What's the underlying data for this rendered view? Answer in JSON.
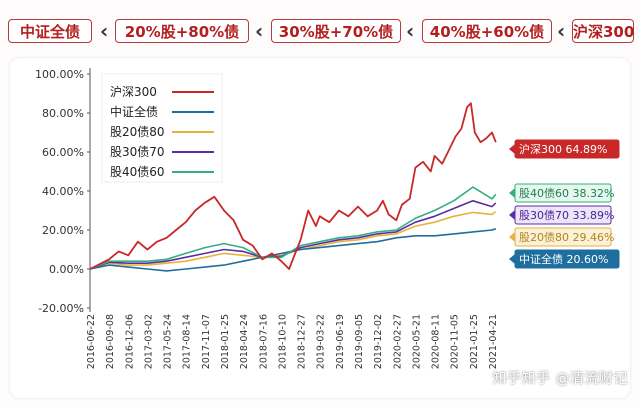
{
  "tabs": [
    {
      "label": "中证全债"
    },
    {
      "label": "20%股+80%债"
    },
    {
      "label": "30%股+70%债"
    },
    {
      "label": "40%股+60%债"
    },
    {
      "label": "沪深300"
    }
  ],
  "watermark": "知乎知乎 @清流财记",
  "colors": {
    "hs300": "#c92828",
    "bond": "#1f6f9e",
    "s20": "#e7b33f",
    "s30": "#5b2da6",
    "s40": "#33b07e"
  },
  "chart_data": {
    "type": "line",
    "title": "",
    "xlabel": "",
    "ylabel": "",
    "ylim": [
      -0.2,
      1.0
    ],
    "yticks": [
      "100.00%",
      "80.00%",
      "60.00%",
      "40.00%",
      "20.00%",
      "0.00%",
      "-20.00%"
    ],
    "xticks": [
      "2016-06-22",
      "2016-09-08",
      "2016-12-06",
      "2017-03-02",
      "2017-05-24",
      "2017-08-14",
      "2017-11-07",
      "2018-01-25",
      "2018-04-24",
      "2018-07-16",
      "2018-10-10",
      "2018-12-27",
      "2019-03-22",
      "2019-06-19",
      "2019-09-05",
      "2019-12-02",
      "2020-02-27",
      "2020-05-21",
      "2020-08-11",
      "2020-11-05",
      "2021-01-25",
      "2021-04-21"
    ],
    "grid": false,
    "legend_position": "top-left",
    "series": [
      {
        "name": "沪深300",
        "key": "hs300",
        "end_label": "沪深300 64.89%",
        "values": [
          [
            0,
            0
          ],
          [
            1,
            0.05
          ],
          [
            1.5,
            0.09
          ],
          [
            2,
            0.07
          ],
          [
            2.5,
            0.14
          ],
          [
            3,
            0.1
          ],
          [
            3.5,
            0.14
          ],
          [
            4,
            0.16
          ],
          [
            4.5,
            0.2
          ],
          [
            5,
            0.24
          ],
          [
            5.5,
            0.3
          ],
          [
            6,
            0.34
          ],
          [
            6.5,
            0.37
          ],
          [
            7,
            0.3
          ],
          [
            7.5,
            0.25
          ],
          [
            8,
            0.15
          ],
          [
            8.5,
            0.12
          ],
          [
            9,
            0.05
          ],
          [
            9.5,
            0.08
          ],
          [
            10,
            0.04
          ],
          [
            10.4,
            0.0
          ],
          [
            10.8,
            0.1
          ],
          [
            11,
            0.15
          ],
          [
            11.4,
            0.3
          ],
          [
            11.8,
            0.22
          ],
          [
            12,
            0.27
          ],
          [
            12.5,
            0.24
          ],
          [
            13,
            0.3
          ],
          [
            13.5,
            0.27
          ],
          [
            14,
            0.32
          ],
          [
            14.5,
            0.27
          ],
          [
            15,
            0.3
          ],
          [
            15.3,
            0.35
          ],
          [
            15.6,
            0.28
          ],
          [
            16,
            0.25
          ],
          [
            16.3,
            0.33
          ],
          [
            16.7,
            0.36
          ],
          [
            17,
            0.52
          ],
          [
            17.4,
            0.55
          ],
          [
            17.8,
            0.5
          ],
          [
            18,
            0.58
          ],
          [
            18.4,
            0.54
          ],
          [
            18.7,
            0.6
          ],
          [
            19.1,
            0.68
          ],
          [
            19.4,
            0.72
          ],
          [
            19.7,
            0.83
          ],
          [
            19.9,
            0.85
          ],
          [
            20.1,
            0.7
          ],
          [
            20.4,
            0.65
          ],
          [
            20.7,
            0.67
          ],
          [
            21,
            0.7
          ],
          [
            21.2,
            0.65
          ]
        ]
      },
      {
        "name": "中证全债",
        "key": "bond",
        "end_label": "中证全债 20.60%",
        "values": [
          [
            0,
            0
          ],
          [
            1,
            0.02
          ],
          [
            2,
            0.01
          ],
          [
            3,
            0.0
          ],
          [
            4,
            -0.01
          ],
          [
            5,
            0.0
          ],
          [
            6,
            0.01
          ],
          [
            7,
            0.02
          ],
          [
            8,
            0.04
          ],
          [
            9,
            0.06
          ],
          [
            10,
            0.08
          ],
          [
            11,
            0.1
          ],
          [
            12,
            0.11
          ],
          [
            13,
            0.12
          ],
          [
            14,
            0.13
          ],
          [
            15,
            0.14
          ],
          [
            16,
            0.16
          ],
          [
            17,
            0.17
          ],
          [
            18,
            0.17
          ],
          [
            19,
            0.18
          ],
          [
            20,
            0.19
          ],
          [
            21,
            0.2
          ],
          [
            21.2,
            0.206
          ]
        ]
      },
      {
        "name": "股20债80",
        "key": "s20",
        "end_label": "股20债80 29.46%",
        "values": [
          [
            0,
            0
          ],
          [
            1,
            0.03
          ],
          [
            2,
            0.02
          ],
          [
            3,
            0.02
          ],
          [
            4,
            0.03
          ],
          [
            5,
            0.04
          ],
          [
            6,
            0.06
          ],
          [
            7,
            0.08
          ],
          [
            8,
            0.07
          ],
          [
            9,
            0.06
          ],
          [
            10,
            0.07
          ],
          [
            11,
            0.1
          ],
          [
            12,
            0.12
          ],
          [
            13,
            0.14
          ],
          [
            14,
            0.15
          ],
          [
            15,
            0.17
          ],
          [
            16,
            0.18
          ],
          [
            17,
            0.22
          ],
          [
            18,
            0.24
          ],
          [
            19,
            0.27
          ],
          [
            20,
            0.29
          ],
          [
            21,
            0.28
          ],
          [
            21.2,
            0.2946
          ]
        ]
      },
      {
        "name": "股30债70",
        "key": "s30",
        "end_label": "股30债70 33.89%",
        "values": [
          [
            0,
            0
          ],
          [
            1,
            0.035
          ],
          [
            2,
            0.03
          ],
          [
            3,
            0.03
          ],
          [
            4,
            0.04
          ],
          [
            5,
            0.06
          ],
          [
            6,
            0.08
          ],
          [
            7,
            0.1
          ],
          [
            8,
            0.09
          ],
          [
            9,
            0.06
          ],
          [
            10,
            0.065
          ],
          [
            11,
            0.11
          ],
          [
            12,
            0.13
          ],
          [
            13,
            0.15
          ],
          [
            14,
            0.16
          ],
          [
            15,
            0.18
          ],
          [
            16,
            0.19
          ],
          [
            17,
            0.24
          ],
          [
            18,
            0.27
          ],
          [
            19,
            0.31
          ],
          [
            20,
            0.35
          ],
          [
            21,
            0.32
          ],
          [
            21.2,
            0.3389
          ]
        ]
      },
      {
        "name": "股40债60",
        "key": "s40",
        "end_label": "股40债60 38.32%",
        "values": [
          [
            0,
            0
          ],
          [
            1,
            0.04
          ],
          [
            2,
            0.04
          ],
          [
            3,
            0.04
          ],
          [
            4,
            0.05
          ],
          [
            5,
            0.08
          ],
          [
            6,
            0.11
          ],
          [
            7,
            0.13
          ],
          [
            8,
            0.11
          ],
          [
            9,
            0.06
          ],
          [
            10,
            0.06
          ],
          [
            11,
            0.12
          ],
          [
            12,
            0.14
          ],
          [
            13,
            0.16
          ],
          [
            14,
            0.17
          ],
          [
            15,
            0.19
          ],
          [
            16,
            0.2
          ],
          [
            17,
            0.26
          ],
          [
            18,
            0.3
          ],
          [
            19,
            0.35
          ],
          [
            20,
            0.42
          ],
          [
            21,
            0.36
          ],
          [
            21.2,
            0.3832
          ]
        ]
      }
    ]
  }
}
